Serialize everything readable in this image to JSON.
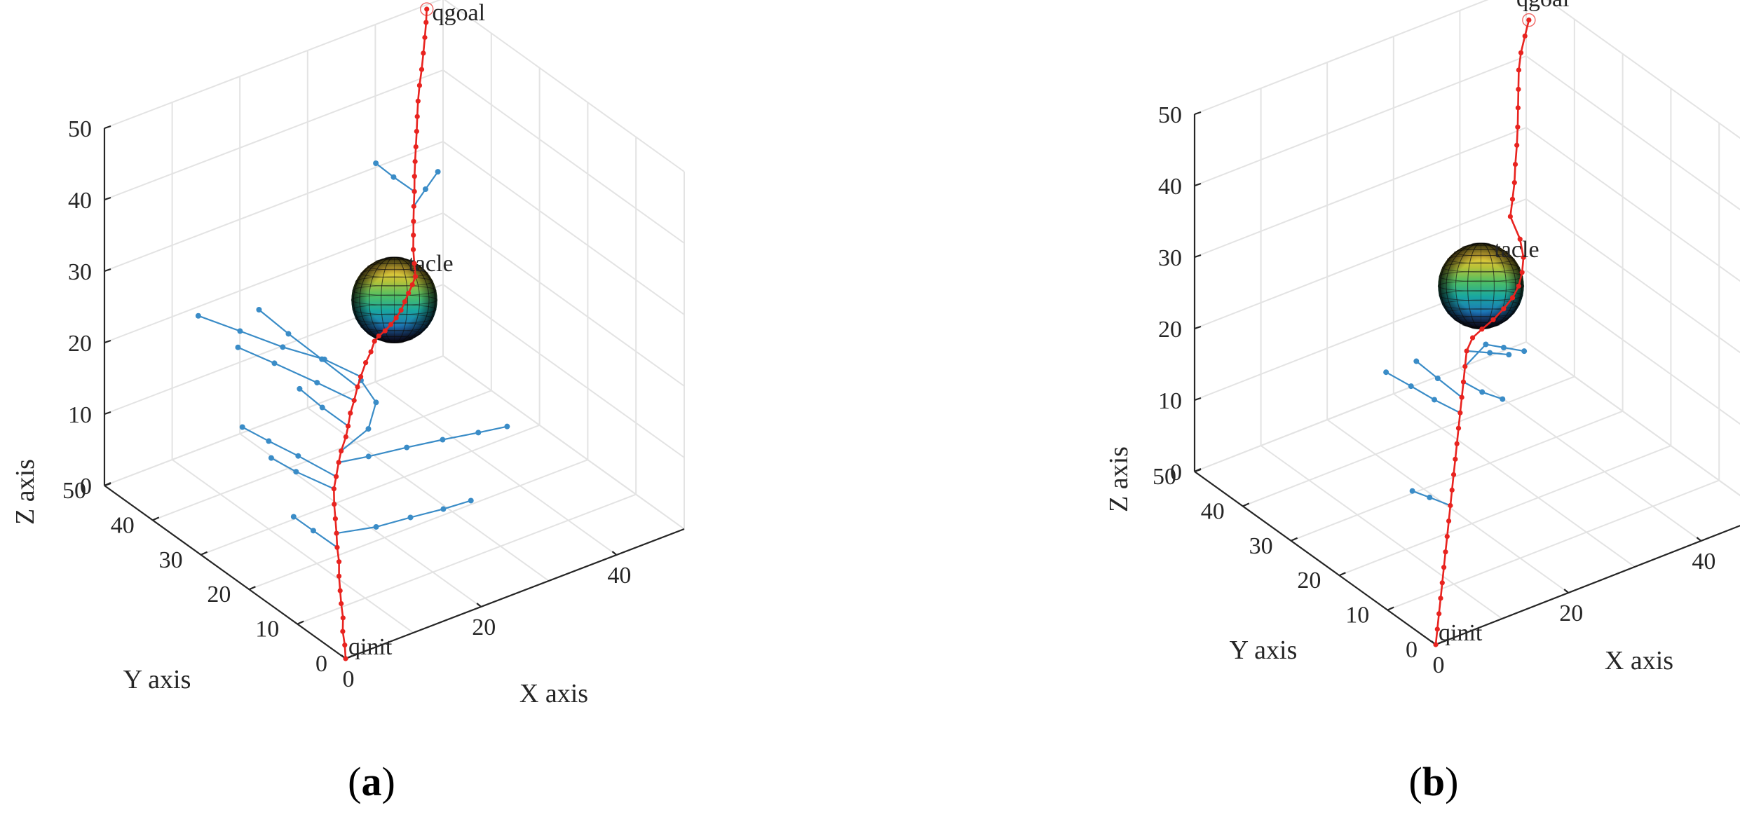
{
  "panels": [
    {
      "caption_label": "a",
      "chart_data": {
        "type": "scatter",
        "title": "",
        "xlabel": "X axis",
        "ylabel": "Y axis",
        "zlabel": "Z axis",
        "xlim": [
          0,
          50
        ],
        "ylim": [
          0,
          50
        ],
        "zlim": [
          0,
          50
        ],
        "xticks": [
          0,
          20,
          40
        ],
        "yticks": [
          0,
          10,
          20,
          30,
          40,
          50
        ],
        "zticks": [
          0,
          10,
          20,
          30,
          40,
          50
        ],
        "grid": true,
        "annotations": [
          {
            "text": "qgoal",
            "at": [
              43,
              43,
              52
            ]
          },
          {
            "text": "tacle",
            "at": [
              30,
              30,
              30
            ]
          },
          {
            "text": "qinit",
            "at": [
              0,
              0,
              0
            ]
          }
        ],
        "obstacle": {
          "center": [
            25,
            25,
            29
          ],
          "radius": 6
        },
        "series": [
          {
            "kind": "path",
            "color": "#e8231f",
            "points": [
              [
                0,
                0,
                0
              ],
              [
                0.3,
                0.6,
                1.5
              ],
              [
                0.5,
                1.3,
                3
              ],
              [
                0.9,
                1.8,
                4.5
              ],
              [
                1.2,
                2.6,
                6
              ],
              [
                1.4,
                3.1,
                7.5
              ],
              [
                1.8,
                3.9,
                9
              ],
              [
                2.3,
                4.6,
                10.5
              ],
              [
                2.6,
                5.4,
                12
              ],
              [
                3,
                6.1,
                13.5
              ],
              [
                3.4,
                6.9,
                15
              ],
              [
                3.8,
                7.7,
                16.5
              ],
              [
                4.4,
                8.6,
                18
              ],
              [
                5.3,
                9.4,
                19
              ],
              [
                6.1,
                10,
                20.4
              ],
              [
                7.1,
                10.9,
                21.2
              ],
              [
                8.3,
                11.6,
                22.4
              ],
              [
                9.2,
                12.4,
                23.2
              ],
              [
                10.1,
                13.2,
                24.3
              ],
              [
                11.3,
                14.1,
                25.2
              ],
              [
                12.3,
                14.8,
                26.4
              ],
              [
                13.2,
                15.4,
                27.2
              ],
              [
                14.5,
                16.2,
                28.3
              ],
              [
                15.7,
                16.8,
                29.1
              ],
              [
                16.8,
                17.6,
                29.8
              ],
              [
                18,
                18.4,
                29.7
              ],
              [
                19.5,
                19.2,
                29.5
              ],
              [
                21,
                20.1,
                29.4
              ],
              [
                22.5,
                21.1,
                29.3
              ],
              [
                24,
                22.2,
                29.3
              ],
              [
                25.4,
                23.4,
                29.4
              ],
              [
                26.8,
                24.6,
                29.5
              ],
              [
                28.3,
                25.9,
                29.5
              ],
              [
                29.6,
                27.1,
                29.6
              ],
              [
                30.3,
                28.3,
                30.6
              ],
              [
                31,
                29.5,
                31.7
              ],
              [
                31.8,
                30.6,
                32.9
              ],
              [
                32.6,
                31.7,
                34
              ],
              [
                33.5,
                32.9,
                35.2
              ],
              [
                34.3,
                33.9,
                36.5
              ],
              [
                35.1,
                35,
                37.8
              ],
              [
                35.9,
                36,
                39.1
              ],
              [
                36.8,
                37.1,
                40.3
              ],
              [
                37.7,
                38.2,
                41.6
              ],
              [
                38.5,
                39.2,
                42.9
              ],
              [
                39.4,
                40.3,
                44.2
              ],
              [
                40.4,
                41.4,
                45.5
              ],
              [
                41.5,
                42.5,
                46.8
              ],
              [
                42.6,
                43.7,
                48.1
              ],
              [
                43.6,
                44.8,
                49.4
              ],
              [
                44.5,
                45.8,
                50.7
              ],
              [
                45.1,
                46.5,
                52
              ]
            ]
          },
          {
            "kind": "tree",
            "color": "#3a8cc7",
            "branches": [
              [
                [
                  3,
                  6.1,
                  13.5
                ],
                [
                  7,
                  3.5,
                  14.2
                ],
                [
                  11,
                  2,
                  14.8
                ],
                [
                  15,
                  0.8,
                  15.1
                ],
                [
                  18.5,
                  0,
                  15.4
                ]
              ],
              [
                [
                  2.6,
                  5.4,
                  12
                ],
                [
                  1.5,
                  8.8,
                  13.1
                ],
                [
                  0.8,
                  11.9,
                  13.8
                ]
              ],
              [
                [
                  4.4,
                  8.6,
                  18
                ],
                [
                  1.8,
                  12.8,
                  19.3
                ],
                [
                  0.2,
                  15.7,
                  20.4
                ]
              ],
              [
                [
                  5.3,
                  9.4,
                  19
                ],
                [
                  2.4,
                  13.2,
                  21.1
                ],
                [
                  0.4,
                  16.5,
                  22.3
                ],
                [
                  -1.5,
                  19.3,
                  23.6
                ]
              ],
              [
                [
                  6.1,
                  10,
                  20.4
                ],
                [
                  9.3,
                  8.3,
                  20.9
                ],
                [
                  13.8,
                  6.7,
                  21.3
                ],
                [
                  18.1,
                  5.3,
                  21.5
                ],
                [
                  22.3,
                  3.8,
                  21.7
                ],
                [
                  25.7,
                  2.6,
                  21.9
                ]
              ],
              [
                [
                  7.1,
                  10.9,
                  21.2
                ],
                [
                  10.2,
                  9.6,
                  23.8
                ],
                [
                  11.9,
                  10.4,
                  26.5
                ],
                [
                  11.1,
                  12.4,
                  28.9
                ]
              ],
              [
                [
                  9.2,
                  12.4,
                  23.2
                ],
                [
                  7.1,
                  14.8,
                  25.4
                ],
                [
                  5.6,
                  17.4,
                  27.3
                ]
              ],
              [
                [
                  11.3,
                  14.1,
                  25.2
                ],
                [
                  8.1,
                  17.3,
                  27.3
                ],
                [
                  4.3,
                  20.8,
                  29.7
                ],
                [
                  1.2,
                  24,
                  31.5
                ]
              ],
              [
                [
                  12.3,
                  14.8,
                  26.4
                ],
                [
                  9.6,
                  18.4,
                  29.5
                ],
                [
                  7.3,
                  22.1,
                  32.1
                ],
                [
                  5.3,
                  25.4,
                  34.6
                ]
              ],
              [
                [
                  13.2,
                  15.4,
                  27.2
                ],
                [
                  10.4,
                  19,
                  28.9
                ],
                [
                  6.6,
                  22.3,
                  30.4
                ],
                [
                  3,
                  26.1,
                  32.1
                ],
                [
                  -0.6,
                  29.7,
                  33.8
                ]
              ],
              [
                [
                  33.5,
                  32.9,
                  35.2
                ],
                [
                  35.3,
                  33,
                  36.9
                ],
                [
                  37.2,
                  33.1,
                  38.6
                ]
              ],
              [
                [
                  34.3,
                  33.9,
                  36.5
                ],
                [
                  32.8,
                  36.1,
                  38
                ],
                [
                  31.6,
                  38.1,
                  39.4
                ]
              ]
            ]
          }
        ]
      }
    },
    {
      "caption_label": "b",
      "chart_data": {
        "type": "scatter",
        "title": "",
        "xlabel": "X axis",
        "ylabel": "Y axis",
        "zlabel": "Z axis",
        "xlim": [
          0,
          50
        ],
        "ylim": [
          0,
          50
        ],
        "zlim": [
          0,
          50
        ],
        "xticks": [
          0,
          20,
          40
        ],
        "yticks": [
          0,
          10,
          20,
          30,
          40,
          50
        ],
        "zticks": [
          0,
          10,
          20,
          30,
          40,
          50
        ],
        "grid": true,
        "annotations": [
          {
            "text": "qgoal",
            "at": [
              43,
              43,
              52
            ]
          },
          {
            "text": "tacle",
            "at": [
              30,
              30,
              30
            ]
          },
          {
            "text": "qinit",
            "at": [
              0,
              0,
              0
            ]
          }
        ],
        "obstacle": {
          "center": [
            25,
            25,
            29
          ],
          "radius": 6
        },
        "series": [
          {
            "kind": "path",
            "color": "#e8231f",
            "points": [
              [
                0,
                0,
                0
              ],
              [
                0.9,
                0.9,
                1.4
              ],
              [
                1.8,
                1.8,
                2.8
              ],
              [
                2.7,
                2.7,
                4.2
              ],
              [
                3.6,
                3.6,
                5.6
              ],
              [
                4.5,
                4.5,
                7
              ],
              [
                5.4,
                5.4,
                8.4
              ],
              [
                6.3,
                6.3,
                9.8
              ],
              [
                7.2,
                7.2,
                11.2
              ],
              [
                8.1,
                8.1,
                12.6
              ],
              [
                9,
                9,
                14
              ],
              [
                9.9,
                9.9,
                15.4
              ],
              [
                10.8,
                10.8,
                16.8
              ],
              [
                11.7,
                11.7,
                18.2
              ],
              [
                12.6,
                12.6,
                19.6
              ],
              [
                13.5,
                13.5,
                21
              ],
              [
                14.4,
                14.4,
                22.4
              ],
              [
                15.3,
                15.3,
                23.8
              ],
              [
                16.2,
                16.2,
                25.2
              ],
              [
                17.1,
                17.1,
                26.6
              ],
              [
                18.5,
                17.8,
                27.6
              ],
              [
                20.2,
                18.2,
                28
              ],
              [
                22.2,
                18.6,
                28.4
              ],
              [
                24.2,
                19.2,
                28.9
              ],
              [
                26.2,
                20.1,
                29.3
              ],
              [
                28,
                21.3,
                29.7
              ],
              [
                29.6,
                22.8,
                30.3
              ],
              [
                30.9,
                24.3,
                31.2
              ],
              [
                31.4,
                25.7,
                32.9
              ],
              [
                31.1,
                27.3,
                35.4
              ],
              [
                32.3,
                28.5,
                36.8
              ],
              [
                33.4,
                29.6,
                38.2
              ],
              [
                34.4,
                30.8,
                39.8
              ],
              [
                35.5,
                32,
                41.5
              ],
              [
                36.5,
                33.2,
                43.1
              ],
              [
                37.5,
                34.5,
                44.8
              ],
              [
                38.5,
                35.8,
                46.4
              ],
              [
                39.5,
                37.1,
                48.1
              ],
              [
                40.7,
                38.3,
                49.5
              ],
              [
                42.1,
                39.4,
                50.8
              ],
              [
                43.5,
                40.5,
                52
              ]
            ]
          },
          {
            "kind": "tree",
            "color": "#3a8cc7",
            "branches": [
              [
                [
                  8.1,
                  8.1,
                  12.6
                ],
                [
                  6.5,
                  10.2,
                  13.3
                ],
                [
                  5.2,
                  12,
                  13.8
                ]
              ],
              [
                [
                  13.5,
                  13.5,
                  21
                ],
                [
                  11.5,
                  16.1,
                  22.3
                ],
                [
                  9.8,
                  18.6,
                  23.6
                ],
                [
                  8,
                  21.3,
                  24.9
                ]
              ],
              [
                [
                  14.4,
                  14.4,
                  22.4
                ],
                [
                  12.3,
                  16.5,
                  24.8
                ],
                [
                  10.6,
                  18.6,
                  26.8
                ]
              ],
              [
                [
                  17.1,
                  17.1,
                  26.6
                ],
                [
                  19.5,
                  15.6,
                  26.2
                ],
                [
                  21.5,
                  14.4,
                  25.8
                ]
              ],
              [
                [
                  16.2,
                  16.2,
                  25.2
                ],
                [
                  18.6,
                  15.2,
                  27.9
                ],
                [
                  20.5,
                  14.1,
                  27.3
                ],
                [
                  22.5,
                  12.6,
                  26.8
                ]
              ],
              [
                [
                  15.3,
                  15.3,
                  23.8
                ],
                [
                  17.4,
                  14.3,
                  22.1
                ],
                [
                  19.6,
                  13.1,
                  20.9
                ]
              ]
            ]
          }
        ]
      }
    }
  ]
}
